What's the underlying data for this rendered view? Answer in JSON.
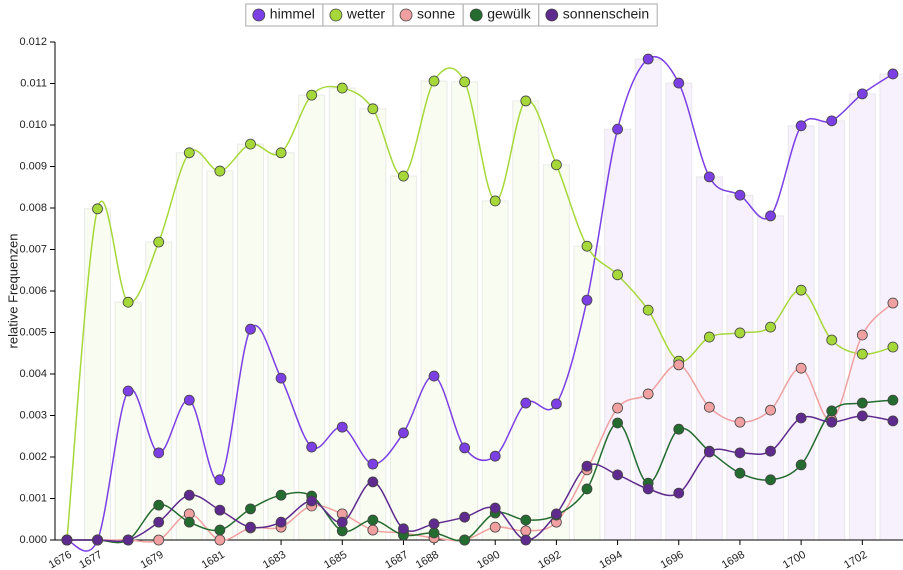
{
  "chart_data": {
    "type": "line",
    "y_label": "relative Frequenzen",
    "x": [
      1676,
      1677,
      1678,
      1679,
      1680,
      1681,
      1682,
      1683,
      1684,
      1685,
      1686,
      1687,
      1688,
      1689,
      1690,
      1691,
      1692,
      1693,
      1694,
      1695,
      1696,
      1697,
      1698,
      1699,
      1700,
      1701,
      1702,
      1703
    ],
    "xlim": [
      1675.61,
      1703.33
    ],
    "xticks": [
      1676,
      1677,
      1679,
      1681,
      1683,
      1685,
      1687,
      1688,
      1690,
      1692,
      1694,
      1696,
      1698,
      1700,
      1702
    ],
    "ylim": [
      0,
      0.012
    ],
    "yticks": [
      {
        "value": 0,
        "label": "0.000"
      },
      {
        "value": 0.001,
        "label": "0.001"
      },
      {
        "value": 0.002,
        "label": "0.002"
      },
      {
        "value": 0.003,
        "label": "0.003"
      },
      {
        "value": 0.004,
        "label": "0.004"
      },
      {
        "value": 0.005,
        "label": "0.005"
      },
      {
        "value": 0.006,
        "label": "0.006"
      },
      {
        "value": 0.007,
        "label": "0.007"
      },
      {
        "value": 0.008,
        "label": "0.008"
      },
      {
        "value": 0.009,
        "label": "0.009"
      },
      {
        "value": 0.01,
        "label": "0.010"
      },
      {
        "value": 0.011,
        "label": "0.011"
      },
      {
        "value": 0.012,
        "label": "0.012"
      }
    ],
    "legend_position": "top",
    "series": [
      {
        "name": "himmel",
        "color": "#7b3fe4",
        "values": [
          0,
          0,
          0.00359,
          0.0021,
          0.00337,
          0.00145,
          0.00508,
          0.0039,
          0.00224,
          0.00272,
          0.00183,
          0.00258,
          0.00395,
          0.00222,
          0.00202,
          0.0033,
          0.00328,
          0.00578,
          0.0099,
          0.01159,
          0.01101,
          0.00875,
          0.00831,
          0.00781,
          0.00998,
          0.0101,
          0.01075,
          0.01123
        ]
      },
      {
        "name": "wetter",
        "color": "#a6d83a",
        "values": [
          0,
          0.00798,
          0.00573,
          0.00718,
          0.00933,
          0.00889,
          0.00954,
          0.00933,
          0.01072,
          0.01089,
          0.01039,
          0.00877,
          0.01106,
          0.01104,
          0.00817,
          0.01058,
          0.00904,
          0.00708,
          0.00639,
          0.00554,
          0.00431,
          0.00489,
          0.00499,
          0.00513,
          0.00602,
          0.00482,
          0.00448,
          0.00465
        ]
      },
      {
        "name": "sonne",
        "color": "#f0a0a0",
        "values": [
          0,
          0,
          0,
          0,
          0.00063,
          0,
          0.00029,
          0.00031,
          0.00082,
          0.00063,
          0.00024,
          0.00017,
          5e-05,
          0,
          0.00031,
          0.00022,
          0.00043,
          0.00169,
          0.00318,
          0.00352,
          0.00422,
          0.0032,
          0.00284,
          0.00313,
          0.00414,
          0.00289,
          0.00494,
          0.00571
        ]
      },
      {
        "name": "gewülk",
        "color": "#236b2f",
        "values": [
          0,
          0,
          0,
          0.00084,
          0.00043,
          0.00024,
          0.00075,
          0.00108,
          0.00106,
          0.00022,
          0.00048,
          0.00012,
          0.00017,
          0,
          0.00065,
          0.00048,
          0.0006,
          0.00123,
          0.00282,
          0.00137,
          0.00267,
          0.00214,
          0.00161,
          0.00145,
          0.00181,
          0.00311,
          0.0033,
          0.00337
        ]
      },
      {
        "name": "sonnenschein",
        "color": "#5e2a8e",
        "values": [
          0,
          0,
          0,
          0.00043,
          0.00108,
          0.00072,
          0.00031,
          0.00043,
          0.00094,
          0.00043,
          0.0014,
          0.00027,
          0.00039,
          0.00055,
          0.00077,
          0,
          0.00063,
          0.00178,
          0.00157,
          0.00123,
          0.00113,
          0.00212,
          0.0021,
          0.00214,
          0.00294,
          0.00284,
          0.00299,
          0.00287
        ]
      }
    ]
  }
}
